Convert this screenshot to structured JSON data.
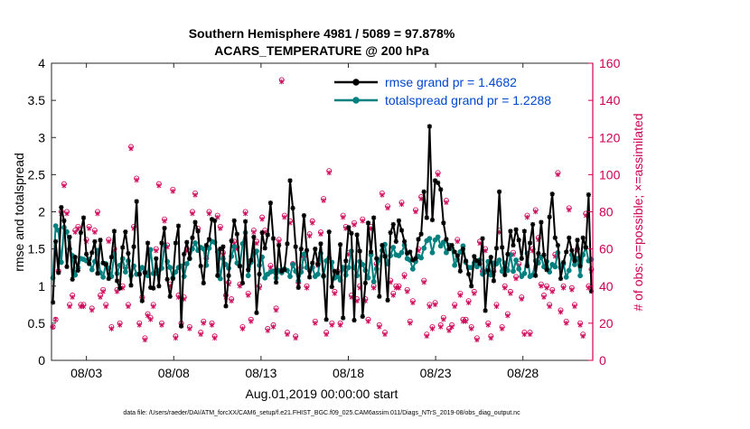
{
  "chart_data": {
    "type": "line",
    "title": "Southern Hemisphere 4981 / 5089 = 97.878%",
    "subtitle": "ACARS_TEMPERATURE @ 200 hPa",
    "xlabel": "Aug.01,2019 00:00:00 start",
    "ylabel_left": "rmse and totalspread",
    "ylabel_right": "# of obs: o=possible; ×=assimilated",
    "footnote": "data file: /Users/raeder/DAI/ATM_forcXX/CAM6_setup/f.e21.FHIST_BGC.f09_025.CAM6assim.011/Diags_NTrS_2019-08/obs_diag_output.nc",
    "xlim": [
      1.0,
      32.0
    ],
    "ylim_left": [
      0,
      4
    ],
    "ylim_right": [
      0,
      160
    ],
    "xticks": [
      3,
      8,
      13,
      18,
      23,
      28
    ],
    "xtick_labels": [
      "08/03",
      "08/08",
      "08/13",
      "08/18",
      "08/23",
      "08/28"
    ],
    "yticks_left": [
      "0",
      "0.5",
      "1",
      "1.5",
      "2",
      "2.5",
      "3",
      "3.5",
      "4"
    ],
    "yticks_right": [
      "0",
      "20",
      "40",
      "60",
      "80",
      "100",
      "120",
      "140",
      "160"
    ],
    "colors": {
      "rmse": "#000000",
      "spread": "#00807f",
      "obs": "#cc0055",
      "legend_text": "#0047cc"
    },
    "legend": [
      {
        "name": "rmse grand pr = 1.4682"
      },
      {
        "name": "totalspread grand pr = 1.2288"
      }
    ],
    "series": [
      {
        "name": "rmse",
        "values": [
          0.78,
          1.6,
          1.18,
          2.06,
          1.88,
          1.26,
          1.66,
          1.09,
          1.39,
          1.21,
          1.72,
          1.92,
          1.43,
          1.3,
          1.45,
          1.6,
          1.17,
          1.62,
          1.31,
          1.29,
          1.1,
          1.39,
          1.74,
          1.07,
          0.97,
          1.52,
          1.73,
          1.44,
          1.01,
          1.53,
          2.14,
          1.16,
          0.8,
          1.18,
          1.58,
          0.98,
          0.97,
          1.37,
          1.0,
          1.58,
          1.78,
          1.09,
          0.86,
          1.1,
          1.58,
          1.81,
          0.46,
          1.43,
          1.59,
          1.37,
          1.65,
          1.86,
          1.74,
          1.27,
          1.04,
          1.55,
          1.63,
          1.9,
          1.88,
          1.14,
          1.5,
          1.53,
          0.73,
          1.14,
          1.61,
          1.88,
          1.7,
          1.27,
          1.04,
          1.87,
          1.22,
          1.35,
          1.66,
          0.64,
          1.16,
          1.72,
          1.51,
          1.69,
          2.12,
          1.64,
          1.05,
          1.55,
          1.2,
          1.22,
          1.57,
          2.42,
          2.05,
          1.53,
          0.98,
          1.5,
          1.95,
          1.48,
          1.12,
          1.31,
          1.5,
          1.29,
          1.57,
          1.14,
          0.55,
          1.73,
          0.99,
          1.2,
          1.18,
          1.56,
          0.57,
          1.34,
          1.79,
          1.71,
          0.54,
          1.69,
          1.47,
          0.59,
          1.04,
          1.85,
          1.46,
          1.92,
          1.37,
          0.86,
          1.55,
          1.4,
          0.81,
          1.72,
          1.83,
          1.6,
          1.88,
          1.75,
          1.6,
          1.44,
          1.46,
          1.35,
          1.37,
          1.63,
          1.7,
          2.27,
          1.92,
          3.15,
          1.89,
          2.42,
          2.39,
          2.3,
          1.85,
          1.63,
          1.5,
          1.55,
          1.46,
          1.41,
          1.2,
          1.5,
          1.34,
          1.16,
          1.0,
          1.4,
          1.34,
          1.3,
          1.64,
          0.67,
          1.21,
          1.39,
          1.07,
          1.51,
          2.27,
          1.52,
          1.15,
          1.43,
          1.74,
          1.55,
          1.76,
          1.62,
          1.37,
          1.74,
          1.27,
          1.58,
          1.83,
          1.14,
          1.44,
          1.86,
          1.42,
          1.22,
          1.93,
          2.24,
          1.65,
          1.55,
          1.1,
          1.32,
          1.46,
          1.65,
          1.48,
          1.34,
          1.62,
          1.27,
          1.65,
          1.52,
          2.23,
          0.93
        ]
      },
      {
        "name": "totalspread",
        "values": [
          1.11,
          1.81,
          1.75,
          1.32,
          1.79,
          1.73,
          1.5,
          1.41,
          1.15,
          1.25,
          1.37,
          1.36,
          1.34,
          1.36,
          1.22,
          1.33,
          1.48,
          1.18,
          1.12,
          1.3,
          1.24,
          1.13,
          1.43,
          1.17,
          1.28,
          1.37,
          1.19,
          1.34,
          1.14,
          1.27,
          1.16,
          1.16,
          1.25,
          1.19,
          1.14,
          1.49,
          1.17,
          1.17,
          1.21,
          1.24,
          1.55,
          1.33,
          1.25,
          1.11,
          1.19,
          1.25,
          1.27,
          1.13,
          1.3,
          1.37,
          1.5,
          1.58,
          1.48,
          1.52,
          1.5,
          1.28,
          1.51,
          1.6,
          1.59,
          1.46,
          1.1,
          1.37,
          1.29,
          1.24,
          1.4,
          1.53,
          1.31,
          1.27,
          1.57,
          1.72,
          1.14,
          1.32,
          1.44,
          1.47,
          1.28,
          1.39,
          1.11,
          1.16,
          1.19,
          1.2,
          1.11,
          1.21,
          1.18,
          1.23,
          1.21,
          1.13,
          1.29,
          1.2,
          1.07,
          1.19,
          1.43,
          1.25,
          1.21,
          1.25,
          1.13,
          1.16,
          1.44,
          1.13,
          1.34,
          1.38,
          1.32,
          1.11,
          1.13,
          1.08,
          1.25,
          1.15,
          1.25,
          1.47,
          1.25,
          1.14,
          1.33,
          1.29,
          1.21,
          1.11,
          1.42,
          1.06,
          1.23,
          1.35,
          1.48,
          1.56,
          1.3,
          1.41,
          1.52,
          1.42,
          1.41,
          1.45,
          1.55,
          1.37,
          1.35,
          1.23,
          1.33,
          1.4,
          1.38,
          1.51,
          1.61,
          1.64,
          1.45,
          1.62,
          1.66,
          1.54,
          1.59,
          1.45,
          1.55,
          1.51,
          1.28,
          1.36,
          1.46,
          1.54,
          1.32,
          1.25,
          1.25,
          1.31,
          1.26,
          1.35,
          1.16,
          1.19,
          1.33,
          1.15,
          1.31,
          1.3,
          1.35,
          1.2,
          1.31,
          1.21,
          1.42,
          1.2,
          1.35,
          1.23,
          1.13,
          1.17,
          1.44,
          1.13,
          1.15,
          1.34,
          1.31,
          1.39,
          1.26,
          1.33,
          1.19,
          1.29,
          1.26,
          1.45,
          1.25,
          1.3,
          1.12,
          1.21,
          1.42,
          1.29,
          1.37,
          1.14,
          1.42,
          1.52,
          1.34,
          1.36
        ]
      },
      {
        "name": "obs_possible",
        "values": [
          18,
          22,
          48,
          80,
          95,
          80,
          30,
          35,
          70,
          72,
          30,
          30,
          65,
          72,
          28,
          70,
          80,
          35,
          38,
          30,
          65,
          18,
          60,
          38,
          20,
          40,
          50,
          30,
          115,
          72,
          98,
          20,
          34,
          12,
          25,
          23,
          30,
          60,
          95,
          20,
          76,
          62,
          41,
          92,
          13,
          35,
          20,
          34,
          60,
          18,
          80,
          90,
          71,
          15,
          21,
          55,
          80,
          20,
          13,
          78,
          72,
          58,
          35,
          42,
          33,
          64,
          61,
          41,
          18,
          80,
          36,
          22,
          70,
          64,
          40,
          77,
          70,
          17,
          51,
          19,
          28,
          65,
          151,
          78,
          15,
          75,
          52,
          13,
          42,
          50,
          56,
          40,
          68,
          75,
          21,
          52,
          69,
          87,
          15,
          102,
          20,
          37,
          48,
          20,
          78,
          72,
          58,
          35,
          74,
          33,
          40,
          76,
          33,
          22,
          72,
          40,
          52,
          19,
          90,
          15,
          83,
          43,
          36,
          40,
          40,
          85,
          46,
          38,
          21,
          32,
          81,
          60,
          88,
          43,
          14,
          30,
          18,
          31,
          101,
          19,
          23,
          86,
          17,
          19,
          30,
          65,
          36,
          22,
          22,
          32,
          18,
          37,
          12,
          64,
          48,
          60,
          20,
          13,
          48,
          30,
          70,
          18,
          40,
          25,
          37,
          58,
          45,
          52,
          34,
          15,
          78,
          15,
          60,
          81,
          66,
          41,
          35,
          40,
          30,
          38,
          57,
          101,
          27,
          40,
          21,
          82,
          39,
          30,
          60,
          20,
          14,
          79,
          40,
          49,
          12,
          33,
          80,
          0
        ]
      },
      {
        "name": "obs_assimilated",
        "values": [
          18,
          22,
          48,
          79,
          94,
          79,
          29,
          34,
          69,
          71,
          29,
          29,
          64,
          71,
          27,
          69,
          79,
          34,
          37,
          29,
          64,
          17,
          59,
          37,
          19,
          39,
          49,
          29,
          114,
          71,
          97,
          19,
          33,
          11,
          24,
          22,
          29,
          59,
          94,
          19,
          75,
          61,
          40,
          91,
          12,
          34,
          19,
          33,
          59,
          17,
          79,
          89,
          70,
          14,
          20,
          54,
          79,
          19,
          12,
          77,
          71,
          57,
          34,
          41,
          32,
          63,
          60,
          40,
          17,
          79,
          35,
          21,
          69,
          63,
          39,
          76,
          69,
          16,
          50,
          18,
          27,
          64,
          150,
          77,
          14,
          74,
          51,
          12,
          41,
          49,
          55,
          39,
          67,
          74,
          20,
          51,
          68,
          86,
          14,
          101,
          19,
          36,
          47,
          19,
          77,
          71,
          57,
          34,
          73,
          32,
          39,
          75,
          32,
          21,
          71,
          39,
          51,
          18,
          89,
          14,
          82,
          42,
          35,
          39,
          39,
          84,
          45,
          37,
          20,
          31,
          80,
          59,
          87,
          42,
          13,
          29,
          17,
          30,
          100,
          18,
          22,
          85,
          16,
          18,
          29,
          64,
          35,
          21,
          21,
          31,
          17,
          36,
          11,
          63,
          47,
          59,
          19,
          12,
          47,
          29,
          69,
          17,
          39,
          24,
          36,
          57,
          44,
          51,
          33,
          14,
          77,
          14,
          59,
          80,
          65,
          40,
          34,
          39,
          29,
          37,
          56,
          100,
          26,
          39,
          20,
          81,
          38,
          29,
          59,
          19,
          13,
          78,
          39,
          48,
          11,
          32,
          79,
          0
        ]
      }
    ]
  }
}
